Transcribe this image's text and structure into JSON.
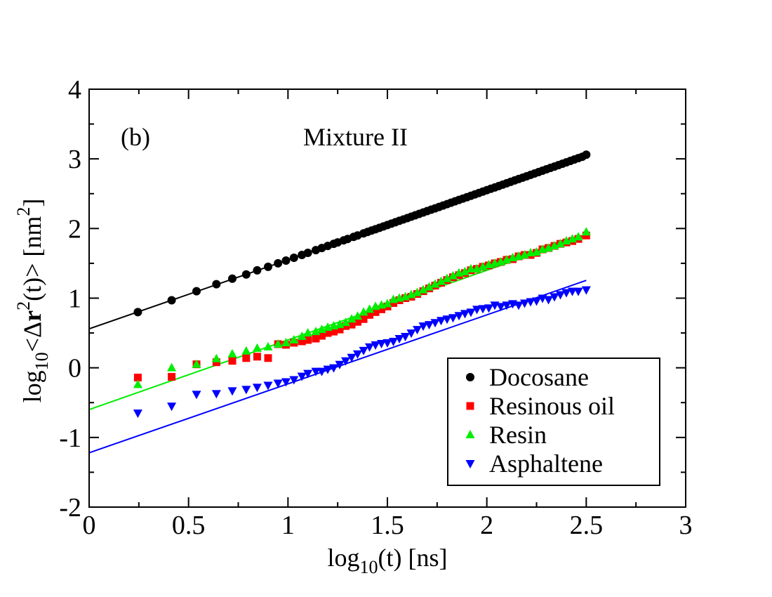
{
  "chart_data": {
    "type": "scatter",
    "annotations": {
      "panel": "(b)",
      "title": "Mixture II"
    },
    "x_axis": {
      "label_base": "log",
      "label_sub": "10",
      "label_rest": "(t) [ns]",
      "range": [
        0,
        3
      ],
      "ticks": [
        "0",
        "0.5",
        "1",
        "1.5",
        "2",
        "2.5",
        "3"
      ]
    },
    "y_axis": {
      "label_base": "log",
      "label_sub": "10",
      "label_lt": "<",
      "label_delta": "Δ",
      "label_r": "r",
      "label_sup": "2",
      "label_mid": "(t)> [nm",
      "label_sup2": "2",
      "label_end": "]",
      "range": [
        -2,
        4
      ],
      "ticks": [
        "-2",
        "-1",
        "0",
        "1",
        "2",
        "3",
        "4"
      ]
    },
    "series": [
      {
        "name": "Docosane",
        "color": "#000000",
        "marker": "circle",
        "fit": {
          "intercept": 0.56,
          "slope": 0.99,
          "x_range": [
            0,
            2.5
          ]
        },
        "x": [
          0.245,
          0.415,
          0.54,
          0.64,
          0.72,
          0.79,
          0.845,
          0.9,
          0.95,
          0.99,
          1.03,
          1.07,
          1.1,
          1.14,
          1.17,
          1.2,
          1.23,
          1.25,
          1.28,
          1.3,
          1.33,
          1.35,
          1.38,
          1.4,
          1.42,
          1.44,
          1.46,
          1.48,
          1.5,
          1.52,
          1.54,
          1.56,
          1.58,
          1.6,
          1.62,
          1.64,
          1.66,
          1.68,
          1.7,
          1.72,
          1.74,
          1.76,
          1.78,
          1.8,
          1.82,
          1.84,
          1.86,
          1.88,
          1.9,
          1.92,
          1.94,
          1.96,
          1.98,
          2.0,
          2.02,
          2.04,
          2.06,
          2.08,
          2.1,
          2.12,
          2.14,
          2.16,
          2.18,
          2.2,
          2.22,
          2.24,
          2.26,
          2.28,
          2.3,
          2.32,
          2.34,
          2.36,
          2.38,
          2.4,
          2.42,
          2.44,
          2.46,
          2.48,
          2.5
        ],
        "y": [
          0.8,
          0.97,
          1.1,
          1.2,
          1.28,
          1.34,
          1.4,
          1.45,
          1.5,
          1.54,
          1.58,
          1.62,
          1.65,
          1.69,
          1.72,
          1.75,
          1.78,
          1.8,
          1.83,
          1.85,
          1.88,
          1.9,
          1.93,
          1.95,
          1.97,
          1.99,
          2.01,
          2.03,
          2.05,
          2.07,
          2.09,
          2.11,
          2.13,
          2.15,
          2.17,
          2.19,
          2.21,
          2.23,
          2.25,
          2.27,
          2.29,
          2.31,
          2.33,
          2.35,
          2.37,
          2.39,
          2.41,
          2.43,
          2.45,
          2.47,
          2.49,
          2.51,
          2.53,
          2.55,
          2.57,
          2.59,
          2.61,
          2.63,
          2.65,
          2.67,
          2.69,
          2.71,
          2.73,
          2.75,
          2.77,
          2.79,
          2.81,
          2.83,
          2.85,
          2.87,
          2.89,
          2.91,
          2.93,
          2.95,
          2.97,
          2.99,
          3.01,
          3.03,
          3.06
        ]
      },
      {
        "name": "Resinous oil",
        "color": "#ff0000",
        "marker": "square",
        "x": [
          0.245,
          0.415,
          0.54,
          0.64,
          0.72,
          0.79,
          0.845,
          0.9,
          0.95,
          0.99,
          1.03,
          1.07,
          1.1,
          1.14,
          1.17,
          1.2,
          1.23,
          1.26,
          1.29,
          1.32,
          1.35,
          1.38,
          1.41,
          1.44,
          1.47,
          1.5,
          1.53,
          1.56,
          1.59,
          1.62,
          1.65,
          1.68,
          1.71,
          1.74,
          1.77,
          1.8,
          1.83,
          1.86,
          1.89,
          1.92,
          1.95,
          1.98,
          2.01,
          2.04,
          2.07,
          2.1,
          2.13,
          2.16,
          2.19,
          2.22,
          2.25,
          2.28,
          2.31,
          2.34,
          2.37,
          2.4,
          2.43,
          2.46,
          2.5
        ],
        "y": [
          -0.14,
          -0.13,
          0.05,
          0.08,
          0.1,
          0.14,
          0.16,
          0.14,
          0.34,
          0.33,
          0.36,
          0.38,
          0.4,
          0.42,
          0.46,
          0.5,
          0.52,
          0.55,
          0.6,
          0.62,
          0.66,
          0.7,
          0.76,
          0.8,
          0.84,
          0.88,
          0.93,
          0.97,
          1.0,
          1.02,
          1.06,
          1.1,
          1.14,
          1.18,
          1.22,
          1.26,
          1.3,
          1.33,
          1.36,
          1.4,
          1.42,
          1.45,
          1.47,
          1.5,
          1.52,
          1.55,
          1.56,
          1.6,
          1.62,
          1.62,
          1.65,
          1.7,
          1.72,
          1.75,
          1.78,
          1.8,
          1.82,
          1.85,
          1.9
        ]
      },
      {
        "name": "Resin",
        "color": "#00ee00",
        "marker": "triangle-up",
        "fit": {
          "intercept": -0.6,
          "slope": 1.0,
          "x_range": [
            0,
            2.5
          ]
        },
        "x": [
          0.245,
          0.415,
          0.54,
          0.64,
          0.72,
          0.79,
          0.845,
          0.9,
          0.95,
          0.99,
          1.03,
          1.07,
          1.1,
          1.14,
          1.17,
          1.2,
          1.23,
          1.26,
          1.29,
          1.32,
          1.35,
          1.38,
          1.41,
          1.44,
          1.47,
          1.5,
          1.53,
          1.56,
          1.59,
          1.62,
          1.65,
          1.68,
          1.71,
          1.74,
          1.77,
          1.8,
          1.83,
          1.86,
          1.89,
          1.92,
          1.95,
          1.98,
          2.01,
          2.04,
          2.07,
          2.1,
          2.13,
          2.16,
          2.19,
          2.22,
          2.25,
          2.28,
          2.31,
          2.34,
          2.37,
          2.4,
          2.43,
          2.46,
          2.5
        ],
        "y": [
          -0.24,
          0.0,
          0.05,
          0.13,
          0.2,
          0.24,
          0.28,
          0.3,
          0.34,
          0.36,
          0.4,
          0.45,
          0.5,
          0.52,
          0.55,
          0.58,
          0.6,
          0.62,
          0.65,
          0.7,
          0.74,
          0.8,
          0.84,
          0.88,
          0.9,
          0.92,
          0.98,
          1.0,
          1.02,
          1.05,
          1.08,
          1.12,
          1.16,
          1.2,
          1.24,
          1.28,
          1.32,
          1.36,
          1.38,
          1.42,
          1.42,
          1.45,
          1.48,
          1.5,
          1.52,
          1.55,
          1.58,
          1.6,
          1.62,
          1.65,
          1.66,
          1.7,
          1.72,
          1.75,
          1.78,
          1.82,
          1.85,
          1.88,
          1.95
        ]
      },
      {
        "name": "Asphaltene",
        "color": "#0000ff",
        "marker": "triangle-down",
        "fit": {
          "intercept": -1.22,
          "slope": 0.99,
          "x_range": [
            0,
            2.5
          ]
        },
        "x": [
          0.245,
          0.415,
          0.54,
          0.64,
          0.72,
          0.79,
          0.845,
          0.9,
          0.95,
          0.99,
          1.03,
          1.07,
          1.1,
          1.14,
          1.17,
          1.2,
          1.23,
          1.26,
          1.29,
          1.32,
          1.35,
          1.38,
          1.41,
          1.44,
          1.47,
          1.5,
          1.53,
          1.56,
          1.59,
          1.62,
          1.65,
          1.68,
          1.71,
          1.74,
          1.77,
          1.8,
          1.83,
          1.86,
          1.89,
          1.92,
          1.95,
          1.98,
          2.01,
          2.04,
          2.07,
          2.1,
          2.13,
          2.16,
          2.19,
          2.22,
          2.25,
          2.28,
          2.31,
          2.34,
          2.37,
          2.4,
          2.43,
          2.46,
          2.5
        ],
        "y": [
          -0.65,
          -0.55,
          -0.38,
          -0.37,
          -0.33,
          -0.31,
          -0.28,
          -0.25,
          -0.22,
          -0.2,
          -0.17,
          -0.12,
          -0.08,
          -0.05,
          -0.05,
          -0.02,
          0.0,
          0.05,
          0.1,
          0.15,
          0.2,
          0.25,
          0.3,
          0.33,
          0.35,
          0.36,
          0.38,
          0.42,
          0.45,
          0.5,
          0.55,
          0.6,
          0.62,
          0.65,
          0.68,
          0.7,
          0.72,
          0.75,
          0.78,
          0.8,
          0.84,
          0.85,
          0.86,
          0.9,
          0.88,
          0.9,
          0.92,
          0.9,
          0.93,
          0.95,
          0.96,
          1.0,
          0.98,
          1.02,
          1.05,
          1.08,
          1.1,
          1.1,
          1.12
        ]
      }
    ],
    "legend": {
      "position": "bottom-right",
      "entries": [
        "Docosane",
        "Resinous oil",
        "Resin",
        "Asphaltene"
      ]
    }
  }
}
